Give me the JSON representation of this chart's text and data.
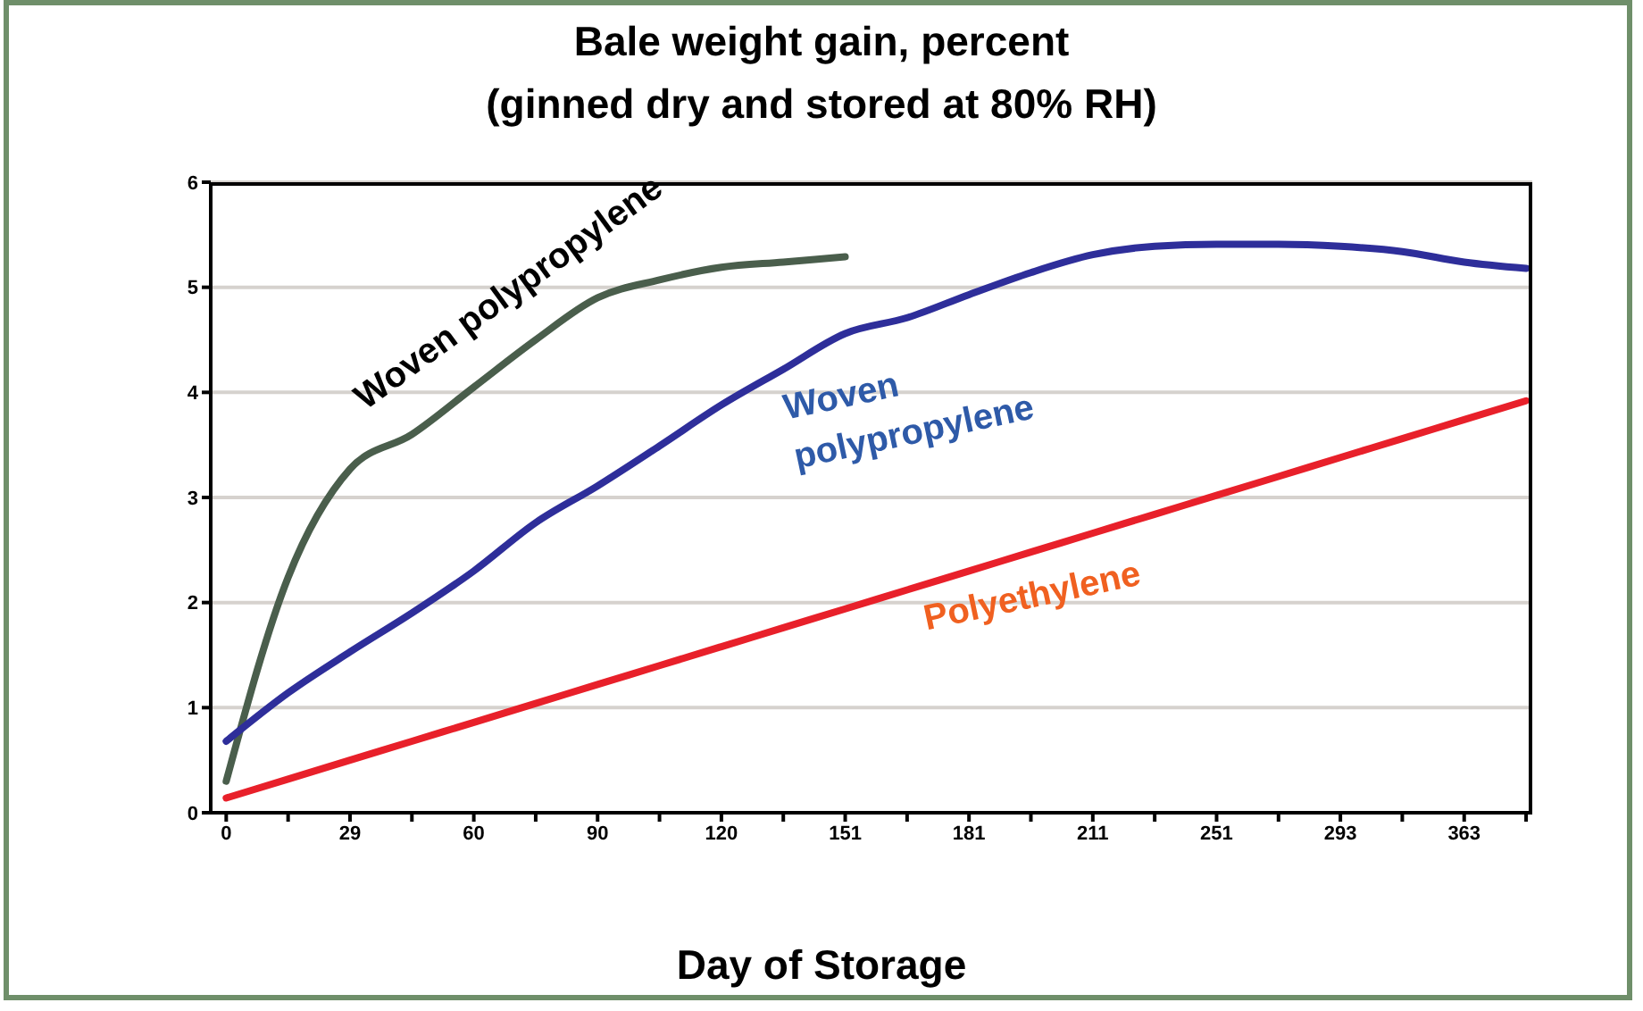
{
  "chart_data": {
    "type": "line",
    "title": "Bale weight gain, percent",
    "subtitle": "(ginned dry and stored at 80% RH)",
    "xlabel": "Day of Storage",
    "categories": [
      "0",
      null,
      "29",
      null,
      "60",
      null,
      "90",
      null,
      "120",
      null,
      "151",
      null,
      "181",
      null,
      "211",
      null,
      "251",
      null,
      "293",
      null,
      "363",
      null
    ],
    "series": [
      {
        "name": "Woven polypropylene",
        "color": "#4a5e4c",
        "values": [
          0.3,
          2.24,
          3.27,
          3.6,
          4.05,
          4.5,
          4.9,
          5.07,
          5.19,
          5.24,
          5.29,
          null,
          null,
          null,
          null,
          null,
          null,
          null,
          null,
          null,
          null,
          null
        ]
      },
      {
        "name": "Woven polypropylene",
        "color": "#2e2e9a",
        "values": [
          0.68,
          1.14,
          1.53,
          1.9,
          2.3,
          2.76,
          3.11,
          3.49,
          3.88,
          4.22,
          4.56,
          4.71,
          4.93,
          5.14,
          5.31,
          5.39,
          5.41,
          5.41,
          5.39,
          5.34,
          5.24,
          5.18
        ]
      },
      {
        "name": "Polyethylene",
        "color": "#e8202a",
        "values": [
          0.14,
          0.32,
          0.5,
          0.68,
          0.86,
          1.04,
          1.22,
          1.4,
          1.58,
          1.76,
          1.94,
          2.12,
          2.3,
          2.48,
          2.66,
          2.84,
          3.02,
          3.2,
          3.38,
          3.56,
          3.74,
          3.92
        ]
      }
    ],
    "ylim": [
      0,
      6
    ],
    "yticks": [
      0,
      1,
      2,
      3,
      4,
      5,
      6
    ],
    "grid": "y",
    "legend": false,
    "marker": "none",
    "line_style": "solid"
  }
}
